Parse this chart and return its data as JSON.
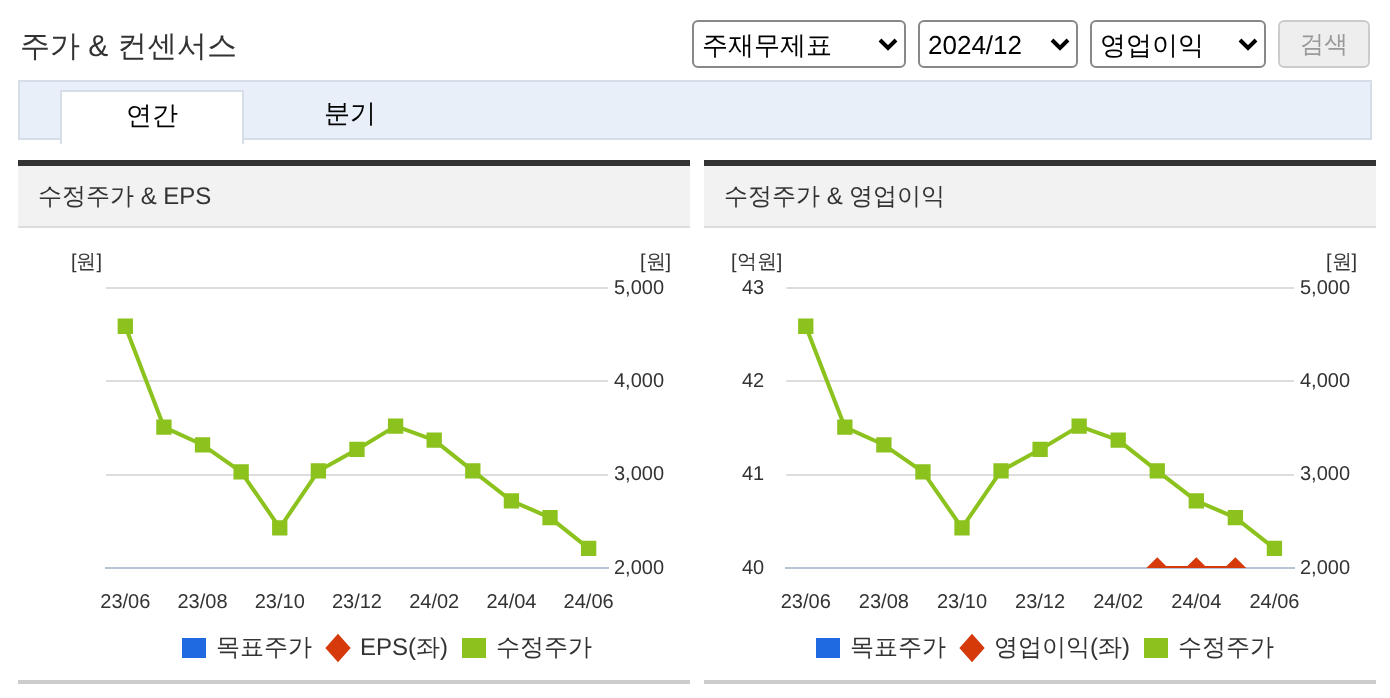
{
  "chart_data": [
    {
      "type": "other",
      "title": "주가 & 컨센서스",
      "annotations": [
        "주재무제표",
        "2024/12",
        "영업이익",
        "검색",
        "연간",
        "분기"
      ]
    },
    {
      "type": "line",
      "title": "수정주가 & EPS",
      "ylabel": "[원]",
      "y2label": "[원]",
      "categories": [
        "23/06",
        null,
        "23/08",
        null,
        "23/10",
        null,
        "23/12",
        null,
        "24/02",
        null,
        "24/04",
        null,
        "24/06"
      ],
      "y2lim": [
        2000,
        5000
      ],
      "y2ticks": [
        {
          "value": 2000,
          "label": "2,000"
        },
        {
          "value": 3000,
          "label": "3,000"
        },
        {
          "value": 4000,
          "label": "4,000"
        },
        {
          "value": 5000,
          "label": "5,000"
        }
      ],
      "grid": "y",
      "legend": "bottom",
      "series": [
        {
          "name": "목표주가",
          "type": "bar",
          "color": "#1f6ae0",
          "values": [
            null,
            null,
            null,
            null,
            null,
            null,
            null,
            null,
            null,
            null,
            null,
            null,
            null
          ]
        },
        {
          "name": "EPS(좌)",
          "type": "line",
          "marker": "diamond",
          "color": "#d63a0a",
          "values": [
            null,
            null,
            null,
            null,
            null,
            null,
            null,
            null,
            null,
            null,
            null,
            null,
            null
          ]
        },
        {
          "name": "수정주가",
          "type": "line",
          "marker": "square",
          "axis": "y2",
          "color": "#8cc21d",
          "values": [
            4590,
            3510,
            3320,
            3030,
            2430,
            3040,
            3270,
            3520,
            3370,
            3040,
            2720,
            2540,
            2210
          ]
        }
      ]
    },
    {
      "type": "line",
      "title": "수정주가 & 영업이익",
      "ylabel": "[억원]",
      "y2label": "[원]",
      "categories": [
        "23/06",
        null,
        "23/08",
        null,
        "23/10",
        null,
        "23/12",
        null,
        "24/02",
        null,
        "24/04",
        null,
        "24/06"
      ],
      "ylim": [
        40,
        43
      ],
      "yticks": [
        40,
        41,
        42,
        43
      ],
      "y2lim": [
        2000,
        5000
      ],
      "y2ticks": [
        {
          "value": 2000,
          "label": "2,000"
        },
        {
          "value": 3000,
          "label": "3,000"
        },
        {
          "value": 4000,
          "label": "4,000"
        },
        {
          "value": 5000,
          "label": "5,000"
        }
      ],
      "grid": "y",
      "legend": "bottom",
      "series": [
        {
          "name": "목표주가",
          "type": "bar",
          "color": "#1f6ae0",
          "values": [
            null,
            null,
            null,
            null,
            null,
            null,
            null,
            null,
            null,
            null,
            null,
            null,
            null
          ]
        },
        {
          "name": "영업이익(좌)",
          "type": "line",
          "marker": "diamond",
          "color": "#d63a0a",
          "values": [
            null,
            null,
            null,
            null,
            null,
            null,
            null,
            null,
            null,
            40,
            40,
            40,
            null
          ]
        },
        {
          "name": "수정주가",
          "type": "line",
          "marker": "square",
          "axis": "y2",
          "color": "#8cc21d",
          "values": [
            4590,
            3510,
            3320,
            3030,
            2430,
            3040,
            3270,
            3520,
            3370,
            3040,
            2720,
            2540,
            2210
          ]
        }
      ]
    }
  ]
}
